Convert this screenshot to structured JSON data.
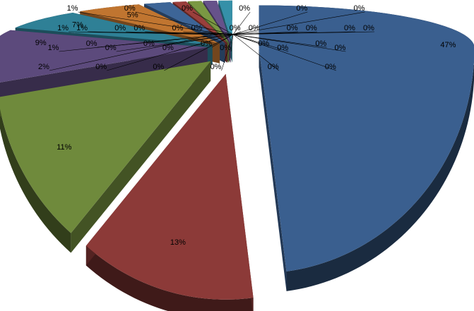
{
  "chart_data": {
    "type": "pie",
    "values": [
      47,
      13,
      11,
      9,
      7,
      5,
      2,
      1,
      1,
      1,
      1,
      0,
      0,
      0,
      0,
      0,
      0,
      0,
      0,
      0,
      0,
      0,
      0,
      0,
      0,
      0,
      0,
      0,
      0,
      0,
      0,
      0,
      0,
      0,
      0,
      0,
      0,
      0,
      0,
      0,
      0
    ],
    "value_labels": [
      "47%",
      "13%",
      "11%",
      "9%",
      "7%",
      "5%",
      "2%",
      "1%",
      "1%",
      "1%",
      "1%",
      "0%",
      "0%",
      "0%",
      "0%",
      "0%",
      "0%",
      "0%",
      "0%",
      "0%",
      "0%",
      "0%",
      "0%",
      "0%",
      "0%",
      "0%",
      "0%",
      "0%",
      "0%",
      "0%",
      "0%",
      "0%",
      "0%",
      "0%",
      "0%",
      "0%",
      "0%",
      "0%",
      "0%",
      "0%",
      "0%"
    ],
    "colors": [
      "#3a5f8f",
      "#8c3a38",
      "#6f8a3c",
      "#5c4a7c",
      "#2f8096",
      "#c07530",
      "#3d6597",
      "#9a3f3c",
      "#7a9843",
      "#66528a",
      "#3590a8"
    ]
  }
}
